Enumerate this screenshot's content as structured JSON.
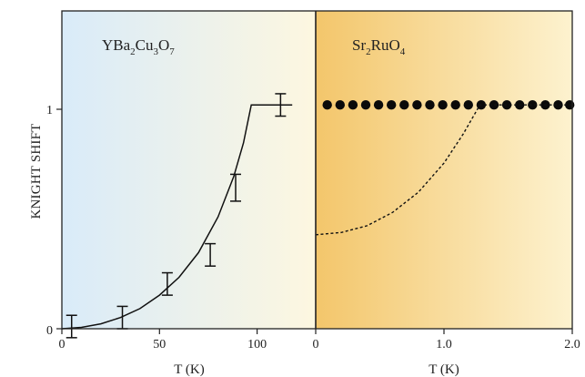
{
  "ylabel": "KNIGHT SHIFT",
  "y_ticks": [
    "0",
    "1"
  ],
  "ylim": [
    0,
    1.42
  ],
  "chart_data": [
    {
      "type": "line",
      "panel": "left",
      "title": {
        "main": "YBa",
        "sub1": "2",
        "mid1": "Cu",
        "sub2": "3",
        "mid2": "O",
        "sub3": "7"
      },
      "xlabel": "T (K)",
      "xlim": [
        0,
        130
      ],
      "x_ticks": [
        {
          "value": 0,
          "label": "0"
        },
        {
          "value": 50,
          "label": "50"
        },
        {
          "value": 100,
          "label": "100"
        }
      ],
      "background": [
        "#d9ebf9",
        "#fdf7e0"
      ],
      "series": [
        {
          "kind": "errorbars",
          "points": [
            {
              "x": 5,
              "y": 0.01,
              "err": 0.05
            },
            {
              "x": 31,
              "y": 0.05,
              "err": 0.05
            },
            {
              "x": 54,
              "y": 0.2,
              "err": 0.05
            },
            {
              "x": 76,
              "y": 0.33,
              "err": 0.05
            },
            {
              "x": 89,
              "y": 0.63,
              "err": 0.06
            },
            {
              "x": 112,
              "y": 1.0,
              "err": 0.05
            }
          ]
        },
        {
          "kind": "curve",
          "style": "solid",
          "points": [
            [
              0,
              0.0
            ],
            [
              10,
              0.006
            ],
            [
              20,
              0.022
            ],
            [
              30,
              0.05
            ],
            [
              40,
              0.09
            ],
            [
              50,
              0.15
            ],
            [
              60,
              0.23
            ],
            [
              70,
              0.34
            ],
            [
              80,
              0.5
            ],
            [
              88,
              0.68
            ],
            [
              93,
              0.83
            ],
            [
              97,
              1.0
            ],
            [
              118,
              1.0
            ]
          ]
        }
      ]
    },
    {
      "type": "scatter",
      "panel": "right",
      "title": {
        "main": "Sr",
        "sub1": "2",
        "mid1": "RuO",
        "sub2": "4"
      },
      "xlabel": "T (K)",
      "xlim": [
        0,
        2.0
      ],
      "x_ticks": [
        {
          "value": 0,
          "label": "0"
        },
        {
          "value": 1.0,
          "label": "1.0"
        },
        {
          "value": 2.0,
          "label": "2.0"
        }
      ],
      "background": [
        "#f3c66b",
        "#fdf2cf"
      ],
      "series": [
        {
          "kind": "points",
          "x": [
            0.09,
            0.19,
            0.29,
            0.39,
            0.49,
            0.59,
            0.69,
            0.79,
            0.89,
            0.99,
            1.09,
            1.19,
            1.29,
            1.39,
            1.49,
            1.59,
            1.69,
            1.79,
            1.89,
            1.98
          ],
          "y": [
            1,
            1,
            1,
            1,
            1,
            1,
            1,
            1,
            1,
            1,
            1,
            1,
            1,
            1,
            1,
            1,
            1,
            1,
            1,
            1
          ]
        },
        {
          "kind": "curve",
          "style": "dashed",
          "points": [
            [
              0,
              0.42
            ],
            [
              0.2,
              0.43
            ],
            [
              0.4,
              0.46
            ],
            [
              0.6,
              0.52
            ],
            [
              0.8,
              0.61
            ],
            [
              1.0,
              0.74
            ],
            [
              1.15,
              0.87
            ],
            [
              1.28,
              1.0
            ],
            [
              2.0,
              1.0
            ]
          ]
        }
      ]
    }
  ]
}
